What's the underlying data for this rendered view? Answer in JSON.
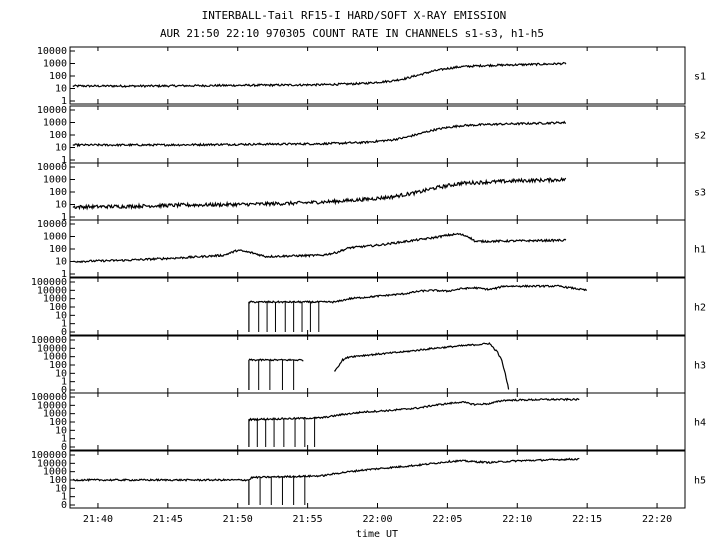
{
  "title_line1": "INTERBALL-Tail RF15-I HARD/SOFT X-RAY EMISSION",
  "title_line2": "AUR 21:50 22:10 970305  COUNT RATE IN CHANNELS s1-s3, h1-h5",
  "xlabel": "time UT",
  "chart_data": {
    "type": "line",
    "x_range_minutes_from_2130": [
      8,
      52
    ],
    "x_ticks": [
      {
        "minute": 10,
        "label": "21:40"
      },
      {
        "minute": 15,
        "label": "21:45"
      },
      {
        "minute": 20,
        "label": "21:50"
      },
      {
        "minute": 25,
        "label": "21:55"
      },
      {
        "minute": 30,
        "label": "22:00"
      },
      {
        "minute": 35,
        "label": "22:05"
      },
      {
        "minute": 40,
        "label": "22:10"
      },
      {
        "minute": 45,
        "label": "22:15"
      },
      {
        "minute": 50,
        "label": "22:20"
      }
    ],
    "y_scale": "log",
    "panels": [
      {
        "name": "s1",
        "y_ticks": [
          "10000",
          "1000",
          "100",
          "10",
          "1"
        ],
        "y_decades": [
          0,
          4
        ],
        "series": [
          [
            8.2,
            1.2
          ],
          [
            14,
            1.2
          ],
          [
            20,
            1.25
          ],
          [
            26,
            1.3
          ],
          [
            29,
            1.4
          ],
          [
            31,
            1.6
          ],
          [
            32,
            1.8
          ],
          [
            33,
            2.1
          ],
          [
            34,
            2.4
          ],
          [
            35,
            2.6
          ],
          [
            36,
            2.75
          ],
          [
            38,
            2.85
          ],
          [
            40,
            2.9
          ],
          [
            42,
            2.95
          ],
          [
            43.5,
            3.0
          ]
        ],
        "noise": 0.08
      },
      {
        "name": "s2",
        "y_ticks": [
          "10000",
          "1000",
          "100",
          "10",
          "1"
        ],
        "y_decades": [
          0,
          4
        ],
        "series": [
          [
            8.2,
            1.2
          ],
          [
            14,
            1.2
          ],
          [
            20,
            1.25
          ],
          [
            26,
            1.3
          ],
          [
            29,
            1.4
          ],
          [
            31,
            1.6
          ],
          [
            32,
            1.8
          ],
          [
            33,
            2.1
          ],
          [
            34,
            2.4
          ],
          [
            35,
            2.6
          ],
          [
            36,
            2.75
          ],
          [
            38,
            2.85
          ],
          [
            40,
            2.9
          ],
          [
            42,
            2.95
          ],
          [
            43.5,
            3.0
          ]
        ],
        "noise": 0.08
      },
      {
        "name": "s3",
        "y_ticks": [
          "10000",
          "1000",
          "100",
          "10",
          "1"
        ],
        "y_decades": [
          0,
          4
        ],
        "series": [
          [
            8.2,
            0.8
          ],
          [
            12,
            0.85
          ],
          [
            16,
            0.95
          ],
          [
            20,
            1.0
          ],
          [
            24,
            1.1
          ],
          [
            27,
            1.25
          ],
          [
            29,
            1.4
          ],
          [
            31,
            1.6
          ],
          [
            32,
            1.8
          ],
          [
            33,
            2.0
          ],
          [
            34,
            2.3
          ],
          [
            35,
            2.5
          ],
          [
            36,
            2.7
          ],
          [
            38,
            2.8
          ],
          [
            40,
            2.9
          ],
          [
            42,
            2.95
          ],
          [
            43.5,
            3.0
          ]
        ],
        "noise": 0.14
      },
      {
        "name": "h1",
        "y_ticks": [
          "10000",
          "1000",
          "100",
          "10",
          "1"
        ],
        "y_decades": [
          0,
          4
        ],
        "series": [
          [
            8.2,
            1.0
          ],
          [
            12,
            1.1
          ],
          [
            16,
            1.3
          ],
          [
            19,
            1.5
          ],
          [
            20,
            1.9
          ],
          [
            21,
            1.7
          ],
          [
            22,
            1.4
          ],
          [
            26,
            1.5
          ],
          [
            27,
            1.7
          ],
          [
            28,
            2.1
          ],
          [
            30,
            2.3
          ],
          [
            32,
            2.6
          ],
          [
            34,
            2.9
          ],
          [
            35,
            3.1
          ],
          [
            35.8,
            3.2
          ],
          [
            36.5,
            3.0
          ],
          [
            37,
            2.6
          ],
          [
            40,
            2.65
          ],
          [
            43.5,
            2.7
          ]
        ],
        "noise": 0.08
      },
      {
        "name": "h2",
        "y_ticks": [
          "100000",
          "10000",
          "1000",
          "100",
          "10",
          "1",
          "0"
        ],
        "y_decades": [
          -1,
          5
        ],
        "series": [
          [
            20.8,
            2.6
          ],
          [
            27,
            2.6
          ],
          [
            27.5,
            2.8
          ],
          [
            28,
            3.0
          ],
          [
            30,
            3.3
          ],
          [
            32,
            3.6
          ],
          [
            33,
            3.9
          ],
          [
            34,
            4.0
          ],
          [
            35,
            3.9
          ],
          [
            36,
            4.2
          ],
          [
            37,
            4.3
          ],
          [
            38,
            4.1
          ],
          [
            38.5,
            4.25
          ],
          [
            39,
            4.5
          ],
          [
            43,
            4.5
          ],
          [
            45,
            4.0
          ]
        ],
        "dropouts": [
          21.5,
          22.1,
          22.7,
          23.4,
          24.0,
          24.6,
          25.2,
          25.8
        ],
        "noise": 0.1
      },
      {
        "name": "h3",
        "y_ticks": [
          "100000",
          "10000",
          "1000",
          "100",
          "10",
          "1",
          "0"
        ],
        "y_decades": [
          -1,
          5
        ],
        "series": [
          [
            20.8,
            2.6
          ],
          [
            24.7,
            2.6
          ]
        ],
        "series2": [
          [
            26.9,
            1.2
          ],
          [
            27.5,
            2.6
          ],
          [
            28,
            3.0
          ],
          [
            30,
            3.3
          ],
          [
            32,
            3.6
          ],
          [
            34,
            4.0
          ],
          [
            36,
            4.3
          ],
          [
            37.5,
            4.5
          ],
          [
            38,
            4.6
          ],
          [
            38.6,
            3.5
          ],
          [
            38.9,
            2.5
          ],
          [
            39.2,
            0.5
          ],
          [
            39.4,
            -1
          ]
        ],
        "dropouts": [
          21.5,
          22.3,
          23.2,
          24.0
        ],
        "noise": 0.1
      },
      {
        "name": "h4",
        "y_ticks": [
          "100000",
          "10000",
          "1000",
          "100",
          "10",
          "1",
          "0"
        ],
        "y_decades": [
          -1,
          5
        ],
        "series": [
          [
            20.8,
            2.3
          ],
          [
            26,
            2.5
          ],
          [
            27.5,
            2.9
          ],
          [
            29,
            3.2
          ],
          [
            31,
            3.4
          ],
          [
            33,
            3.7
          ],
          [
            34,
            4.0
          ],
          [
            35,
            4.2
          ],
          [
            36,
            4.4
          ],
          [
            37,
            4.1
          ],
          [
            38,
            4.2
          ],
          [
            39,
            4.6
          ],
          [
            42,
            4.7
          ],
          [
            44,
            4.7
          ],
          [
            44.5,
            4.7
          ],
          [
            44.5,
            -1
          ]
        ],
        "dropouts": [
          21.4,
          22.0,
          22.6,
          23.3,
          24.1,
          24.8,
          25.5
        ],
        "noise": 0.1
      },
      {
        "name": "h5",
        "y_ticks": [
          "100000",
          "10000",
          "1000",
          "100",
          "10",
          "1",
          "0"
        ],
        "y_decades": [
          -1,
          5
        ],
        "series": [
          [
            8.2,
            2.0
          ],
          [
            20.8,
            2.0
          ],
          [
            21,
            2.3
          ],
          [
            26,
            2.5
          ],
          [
            27.5,
            2.9
          ],
          [
            29,
            3.2
          ],
          [
            31,
            3.5
          ],
          [
            33,
            3.8
          ],
          [
            34,
            4.0
          ],
          [
            35,
            4.2
          ],
          [
            36,
            4.3
          ],
          [
            37,
            4.2
          ],
          [
            38,
            4.1
          ],
          [
            40,
            4.3
          ],
          [
            42,
            4.4
          ],
          [
            44,
            4.5
          ],
          [
            44.5,
            4.5
          ],
          [
            44.5,
            -1
          ]
        ],
        "dropouts": [
          21.6,
          22.4,
          23.2,
          24.0,
          24.8
        ],
        "noise": 0.1
      }
    ]
  }
}
